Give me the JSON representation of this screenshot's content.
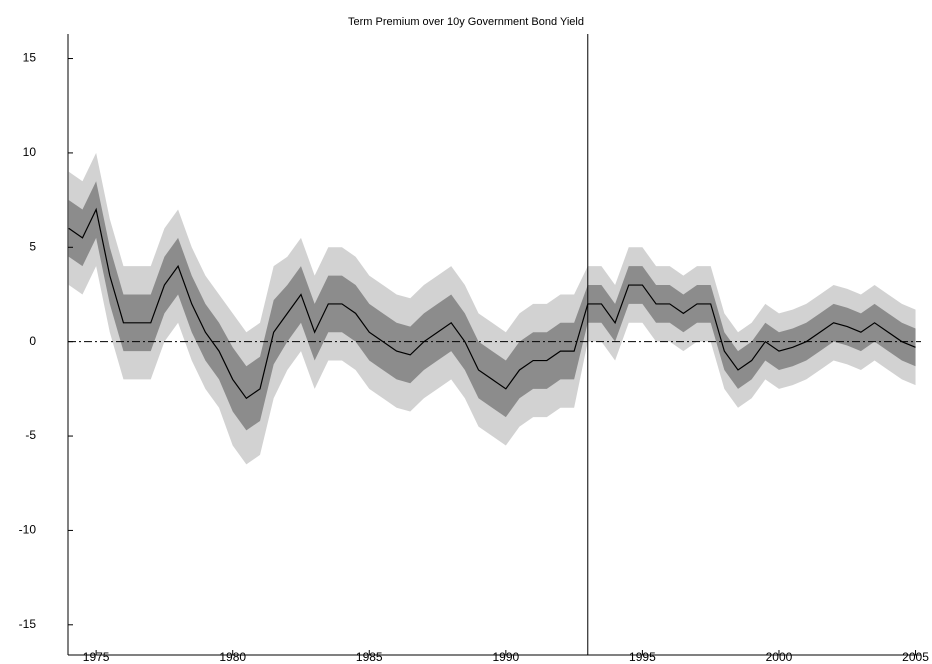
{
  "chart_data": {
    "type": "fan",
    "title": "Term Premium over 10y Government Bond Yield",
    "x": [
      1974.0,
      1974.5,
      1975.0,
      1975.5,
      1976.0,
      1976.5,
      1977.0,
      1977.5,
      1978.0,
      1978.5,
      1979.0,
      1979.5,
      1980.0,
      1980.5,
      1981.0,
      1981.5,
      1982.0,
      1982.5,
      1983.0,
      1983.5,
      1984.0,
      1984.5,
      1985.0,
      1985.5,
      1986.0,
      1986.5,
      1987.0,
      1987.5,
      1988.0,
      1988.5,
      1989.0,
      1989.5,
      1990.0,
      1990.5,
      1991.0,
      1991.5,
      1992.0,
      1992.5,
      1993.0,
      1993.5,
      1994.0,
      1994.5,
      1995.0,
      1995.5,
      1996.0,
      1996.5,
      1997.0,
      1997.5,
      1998.0,
      1998.5,
      1999.0,
      1999.5,
      2000.0,
      2000.5,
      2001.0,
      2001.5,
      2002.0,
      2002.5,
      2003.0,
      2003.5,
      2004.0,
      2004.5,
      2005.0
    ],
    "bands": [
      {
        "color": "#d2d2d2",
        "lower": [
          3,
          2.5,
          4,
          0.5,
          -2,
          -2,
          -2,
          0,
          1,
          -1,
          -2.5,
          -3.5,
          -5.5,
          -6.5,
          -6,
          -3,
          -1.5,
          -0.5,
          -2.5,
          -1,
          -1,
          -1.5,
          -2.5,
          -3,
          -3.5,
          -3.7,
          -3,
          -2.5,
          -2,
          -3,
          -4.5,
          -5,
          -5.5,
          -4.5,
          -4,
          -4,
          -3.5,
          -3.5,
          0,
          0,
          -1,
          1,
          1,
          0,
          0,
          -0.5,
          0,
          0,
          -2.5,
          -3.5,
          -3,
          -2,
          -2.5,
          -2.3,
          -2,
          -1.5,
          -1,
          -1.2,
          -1.5,
          -1,
          -1.5,
          -2,
          -2.3
        ],
        "upper": [
          9,
          8.5,
          10,
          6.5,
          4,
          4,
          4,
          6,
          7,
          5,
          3.5,
          2.5,
          1.5,
          0.5,
          1,
          4,
          4.5,
          5.5,
          3.5,
          5,
          5,
          4.5,
          3.5,
          3,
          2.5,
          2.3,
          3,
          3.5,
          4,
          3,
          1.5,
          1,
          0.5,
          1.5,
          2,
          2,
          2.5,
          2.5,
          4,
          4,
          3,
          5,
          5,
          4,
          4,
          3.5,
          4,
          4,
          1.5,
          0.5,
          1,
          2,
          1.5,
          1.7,
          2,
          2.5,
          3,
          2.8,
          2.5,
          3,
          2.5,
          2,
          1.7
        ]
      },
      {
        "color": "#8c8c8c",
        "lower": [
          4.5,
          4,
          5.5,
          2,
          -0.5,
          -0.5,
          -0.5,
          1.5,
          2.5,
          0.5,
          -1,
          -2,
          -3.7,
          -4.7,
          -4.2,
          -1.2,
          0,
          1,
          -1,
          0.5,
          0.5,
          0,
          -1,
          -1.5,
          -2,
          -2.2,
          -1.5,
          -1,
          -0.5,
          -1.5,
          -3,
          -3.5,
          -4,
          -3,
          -2.5,
          -2.5,
          -2,
          -2,
          1,
          1,
          0,
          2,
          2,
          1,
          1,
          0.5,
          1,
          1,
          -1.5,
          -2.5,
          -2,
          -1,
          -1.5,
          -1.3,
          -1,
          -0.5,
          0,
          -0.2,
          -0.5,
          0,
          -0.5,
          -1,
          -1.3
        ],
        "upper": [
          7.5,
          7,
          8.5,
          5,
          2.5,
          2.5,
          2.5,
          4.5,
          5.5,
          3.5,
          2,
          1,
          -0.3,
          -1.3,
          -0.8,
          2.2,
          3,
          4,
          2,
          3.5,
          3.5,
          3,
          2,
          1.5,
          1,
          0.8,
          1.5,
          2,
          2.5,
          1.5,
          0,
          -0.5,
          -1,
          0,
          0.5,
          0.5,
          1,
          1,
          3,
          3,
          2,
          4,
          4,
          3,
          3,
          2.5,
          3,
          3,
          0.5,
          -0.5,
          0,
          1,
          0.5,
          0.7,
          1,
          1.5,
          2,
          1.8,
          1.5,
          2,
          1.5,
          1,
          0.7
        ]
      }
    ],
    "line": {
      "color": "#000000",
      "values": [
        6,
        5.5,
        7,
        3.5,
        1,
        1,
        1,
        3,
        4,
        2,
        0.5,
        -0.5,
        -2,
        -3,
        -2.5,
        0.5,
        1.5,
        2.5,
        0.5,
        2,
        2,
        1.5,
        0.5,
        0,
        -0.5,
        -0.7,
        0,
        0.5,
        1,
        0,
        -1.5,
        -2,
        -2.5,
        -1.5,
        -1,
        -1,
        -0.5,
        -0.5,
        2,
        2,
        1,
        3,
        3,
        2,
        2,
        1.5,
        2,
        2,
        -0.5,
        -1.5,
        -1,
        0,
        -0.5,
        -0.3,
        0,
        0.5,
        1,
        0.8,
        0.5,
        1,
        0.5,
        0,
        -0.3
      ]
    },
    "vline": 1993,
    "hline": 0,
    "xlim": [
      1973.97,
      2005.2
    ],
    "ylim": [
      -16.6,
      16.3
    ],
    "xticks": [
      1975,
      1980,
      1985,
      1990,
      1995,
      2000,
      2005
    ],
    "yticks": [
      -15,
      -10,
      -5,
      0,
      5,
      10,
      15
    ]
  }
}
